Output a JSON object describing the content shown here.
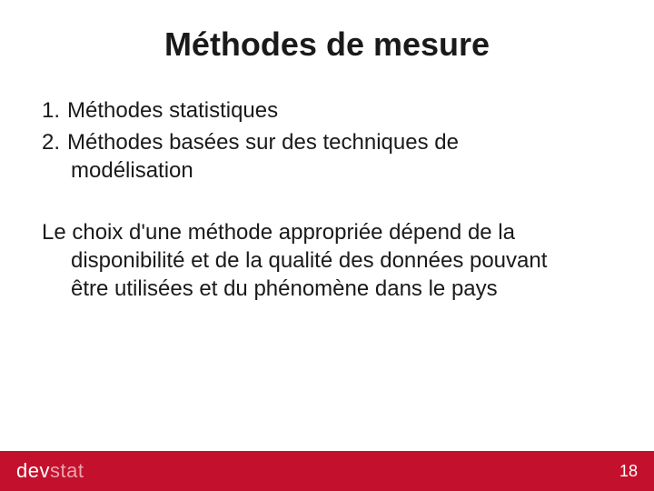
{
  "slide": {
    "title": "Méthodes de mesure",
    "items": [
      {
        "num": "1.",
        "text": "Méthodes statistiques"
      },
      {
        "num": "2.",
        "text_line1": "Méthodes basées sur des techniques de",
        "text_line2": "modélisation"
      }
    ],
    "paragraph_line1": "Le choix d'une méthode appropriée dépend de la",
    "paragraph_line2": "disponibilité et de la qualité des données pouvant",
    "paragraph_line3": "être utilisées et du phénomène dans le pays"
  },
  "footer": {
    "logo_prefix": "dev",
    "logo_suffix": "stat",
    "page_number": "18",
    "bg_color": "#c3112d"
  },
  "style": {
    "background_color": "#ffffff",
    "title_fontsize": 36,
    "body_fontsize": 24,
    "text_color": "#1a1a1a",
    "footer_text_color": "#ffffff",
    "footer_muted_color": "#e8a6ae"
  }
}
